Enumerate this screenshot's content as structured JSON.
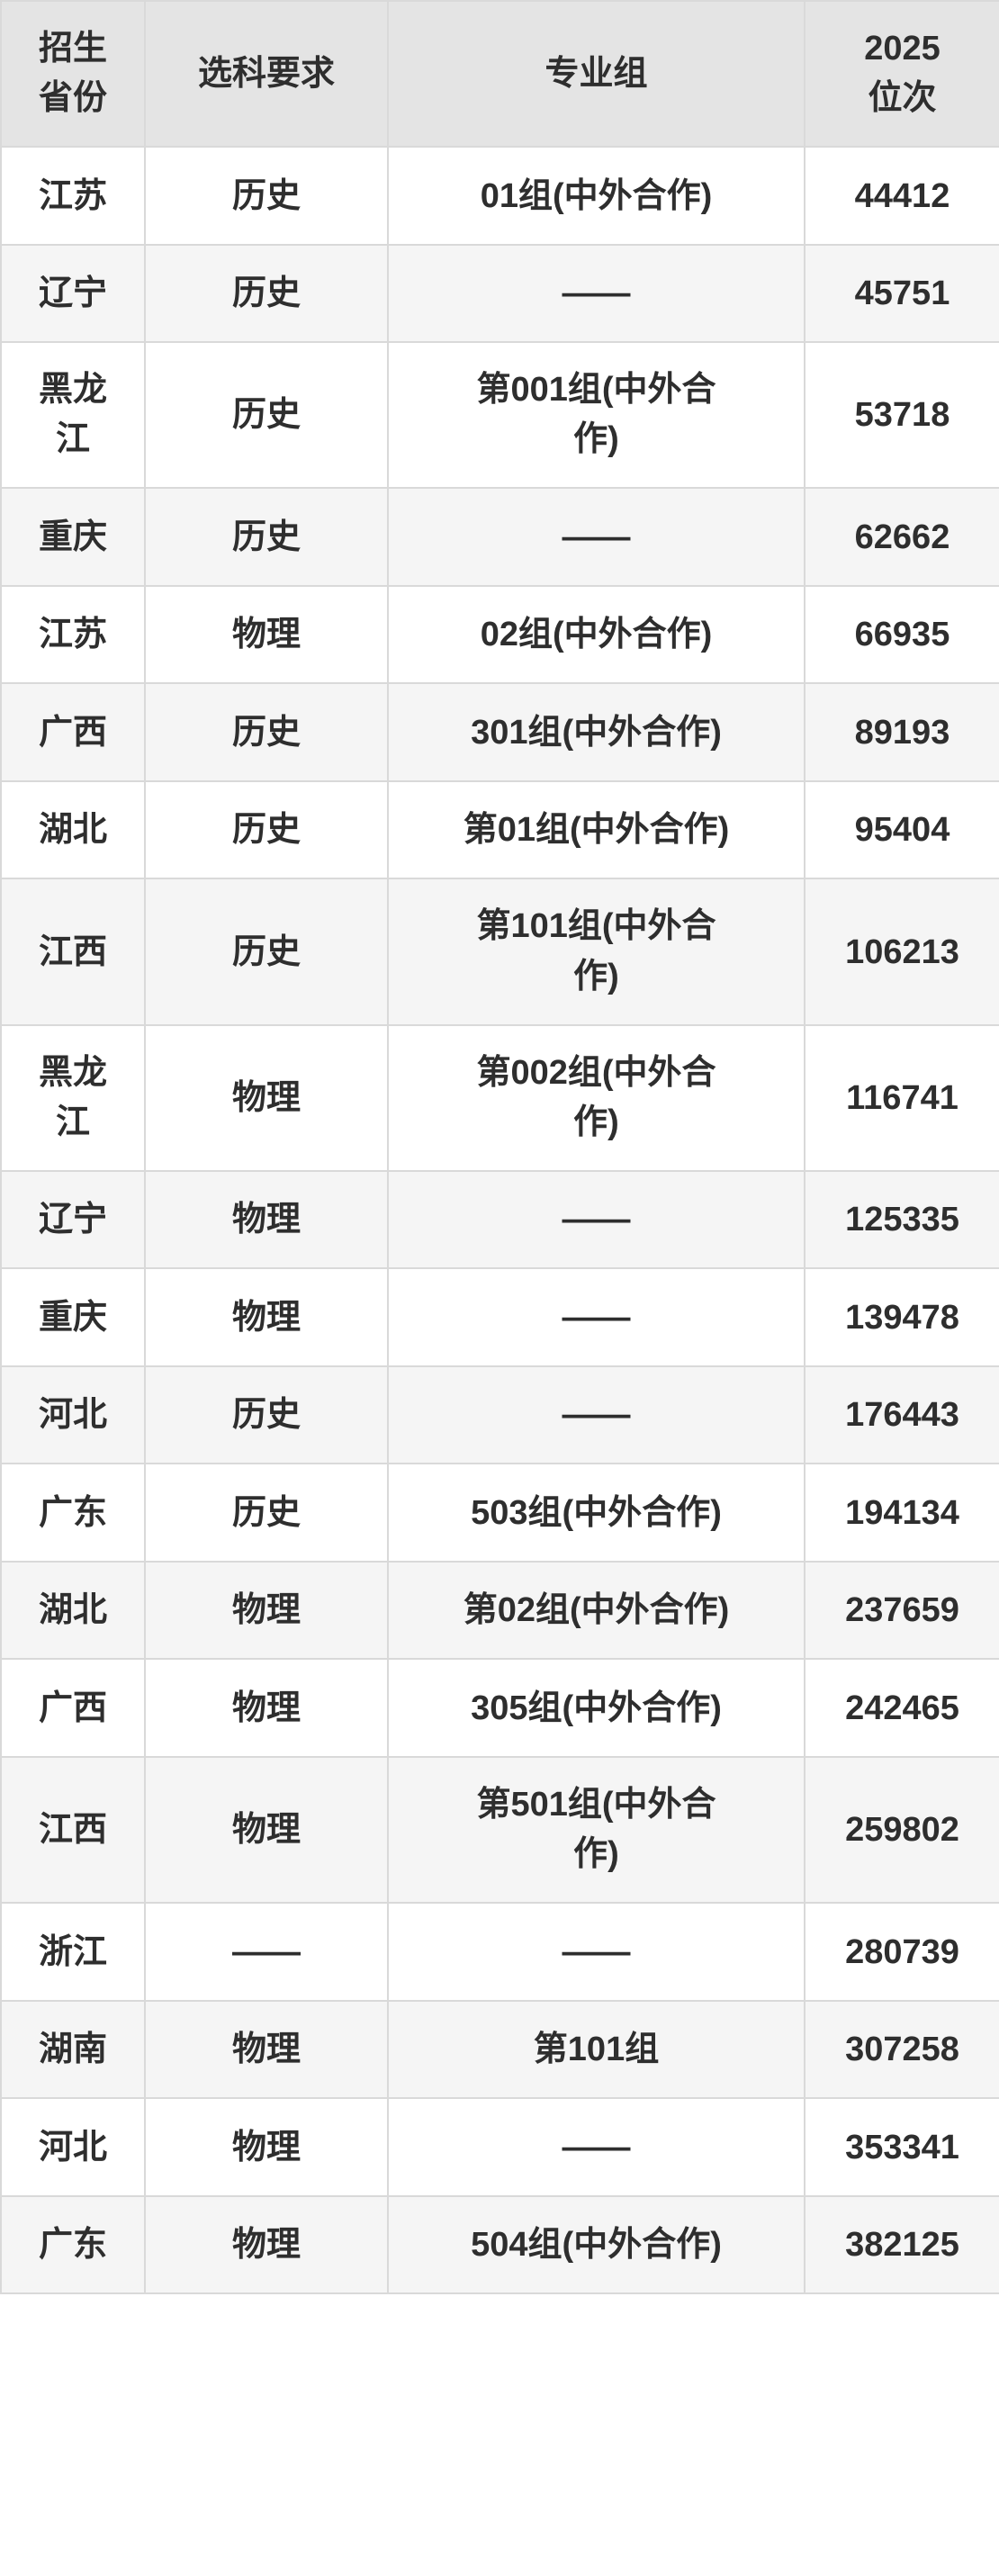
{
  "page": {
    "background": "#ffffff"
  },
  "colors": {
    "header_bg": "#e4e4e4",
    "row_bg": "#ffffff",
    "row_alt_bg": "#f5f5f5",
    "border": "#d9d9d9",
    "text": "#2e2e2e"
  },
  "chart_data": {
    "type": "table",
    "title": "",
    "columns": [
      "招生省份",
      "选科要求",
      "专业组",
      "2025位次"
    ],
    "column_keys": [
      "province",
      "subject",
      "group",
      "rank"
    ],
    "rows": [
      [
        "江苏",
        "历史",
        "01组(中外合作)",
        "44412"
      ],
      [
        "辽宁",
        "历史",
        "——",
        "45751"
      ],
      [
        "黑龙江",
        "历史",
        "第001组(中外合作)",
        "53718"
      ],
      [
        "重庆",
        "历史",
        "——",
        "62662"
      ],
      [
        "江苏",
        "物理",
        "02组(中外合作)",
        "66935"
      ],
      [
        "广西",
        "历史",
        "301组(中外合作)",
        "89193"
      ],
      [
        "湖北",
        "历史",
        "第01组(中外合作)",
        "95404"
      ],
      [
        "江西",
        "历史",
        "第101组(中外合作)",
        "106213"
      ],
      [
        "黑龙江",
        "物理",
        "第002组(中外合作)",
        "116741"
      ],
      [
        "辽宁",
        "物理",
        "——",
        "125335"
      ],
      [
        "重庆",
        "物理",
        "——",
        "139478"
      ],
      [
        "河北",
        "历史",
        "——",
        "176443"
      ],
      [
        "广东",
        "历史",
        "503组(中外合作)",
        "194134"
      ],
      [
        "湖北",
        "物理",
        "第02组(中外合作)",
        "237659"
      ],
      [
        "广西",
        "物理",
        "305组(中外合作)",
        "242465"
      ],
      [
        "江西",
        "物理",
        "第501组(中外合作)",
        "259802"
      ],
      [
        "浙江",
        "——",
        "——",
        "280739"
      ],
      [
        "湖南",
        "物理",
        "第101组",
        "307258"
      ],
      [
        "河北",
        "物理",
        "——",
        "353341"
      ],
      [
        "广东",
        "物理",
        "504组(中外合作)",
        "382125"
      ]
    ]
  }
}
